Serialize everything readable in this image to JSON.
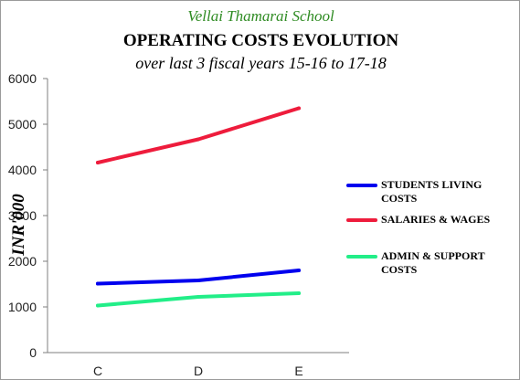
{
  "header": {
    "school": "Vellai Thamarai School",
    "title": "OPERATING COSTS EVOLUTION",
    "subtitle": "over last 3 fiscal years 15-16 to 17-18"
  },
  "chart_data": {
    "type": "line",
    "title": "OPERATING COSTS EVOLUTION",
    "subtitle": "over last 3 fiscal years 15-16 to 17-18",
    "xlabel": "",
    "ylabel": "INR'000",
    "categories": [
      "C",
      "D",
      "E"
    ],
    "ylim": [
      0,
      6000
    ],
    "yticks": [
      0,
      1000,
      2000,
      3000,
      4000,
      5000,
      6000
    ],
    "grid": false,
    "legend_position": "right",
    "series": [
      {
        "name": "STUDENTS LIVING COSTS",
        "legend_lines": [
          "STUDENTS LIVING",
          "COSTS"
        ],
        "color": "#0000ee",
        "values": [
          1510,
          1580,
          1800
        ]
      },
      {
        "name": "SALARIES & WAGES",
        "legend_lines": [
          "SALARIES & WAGES"
        ],
        "color": "#ee1c3c",
        "values": [
          4160,
          4670,
          5350
        ]
      },
      {
        "name": "ADMIN & SUPPORT COSTS",
        "legend_lines": [
          "ADMIN & SUPPORT",
          "COSTS"
        ],
        "color": "#22ee88",
        "values": [
          1030,
          1220,
          1300
        ]
      }
    ]
  }
}
